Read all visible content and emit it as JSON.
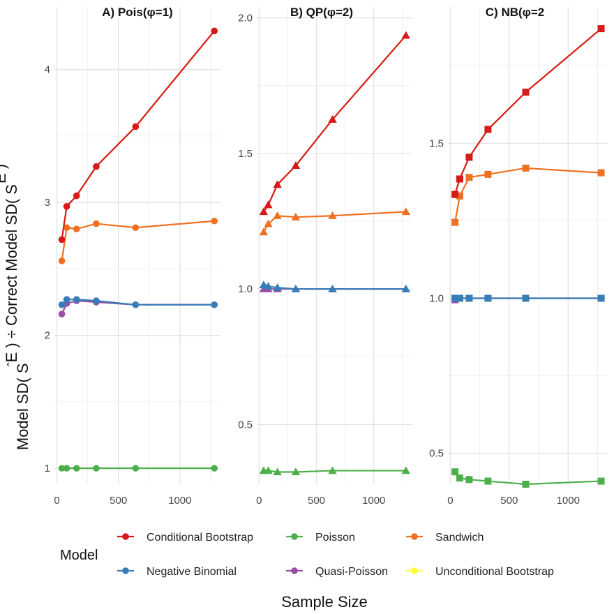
{
  "figure": {
    "ylabel": "Model SD( SÊ ) ÷ Correct Model SD( SÊ )",
    "ylabel_parts": [
      "Model SD( ",
      "S",
      "E",
      " ) ÷ Correct Model SD( ",
      "S",
      "E",
      " )"
    ],
    "xlabel": "Sample Size",
    "legend_title": "Model",
    "legend_items": [
      {
        "label": "Conditional Bootstrap",
        "color": "#d7191c"
      },
      {
        "label": "Poisson",
        "color": "#4daf4a"
      },
      {
        "label": "Sandwich",
        "color": "#f07021"
      },
      {
        "label": "Negative Binomial",
        "color": "#377eb8"
      },
      {
        "label": "Quasi-Poisson",
        "color": "#984ea3"
      },
      {
        "label": "Unconditional Bootstrap",
        "color": "#ffff33"
      }
    ]
  },
  "chart_data": [
    {
      "type": "line",
      "title": "A) Pois(φ=1)",
      "marker": "circle",
      "x": [
        40,
        80,
        160,
        320,
        640,
        1280
      ],
      "xlim": [
        -20,
        1330
      ],
      "ylim": [
        0.88,
        4.47
      ],
      "yticks": [
        1,
        2,
        3,
        4
      ],
      "xticks": [
        0,
        500,
        1000
      ],
      "series": [
        {
          "name": "Sandwich",
          "values": [
            2.56,
            2.81,
            2.8,
            2.84,
            2.81,
            2.86
          ]
        },
        {
          "name": "Poisson",
          "values": [
            1.0,
            1.0,
            1.0,
            1.0,
            1.0,
            1.0
          ]
        },
        {
          "name": "Quasi-Poisson",
          "values": [
            2.16,
            2.24,
            2.26,
            2.25,
            2.23,
            2.23
          ]
        },
        {
          "name": "Negative Binomial",
          "values": [
            2.23,
            2.27,
            2.27,
            2.26,
            2.23,
            2.23
          ]
        },
        {
          "name": "Unconditional Bootstrap",
          "values": [
            2.72,
            2.97,
            3.05,
            3.27,
            3.57,
            4.29
          ]
        },
        {
          "name": "Conditional Bootstrap",
          "values": [
            2.72,
            2.97,
            3.05,
            3.27,
            3.57,
            4.29
          ]
        }
      ]
    },
    {
      "type": "line",
      "title": "B) QP(φ=2)",
      "marker": "triangle",
      "x": [
        40,
        80,
        160,
        320,
        640,
        1280
      ],
      "xlim": [
        -20,
        1330
      ],
      "ylim": [
        0.28,
        2.04
      ],
      "yticks": [
        0.5,
        1.0,
        1.5,
        2.0
      ],
      "xticks": [
        0,
        500,
        1000
      ],
      "series": [
        {
          "name": "Sandwich",
          "values": [
            1.21,
            1.24,
            1.27,
            1.265,
            1.27,
            1.285
          ]
        },
        {
          "name": "Poisson",
          "values": [
            0.33,
            0.33,
            0.325,
            0.325,
            0.33,
            0.33
          ]
        },
        {
          "name": "Quasi-Poisson",
          "values": [
            1.0,
            1.0,
            1.0,
            1.0,
            1.0,
            1.0
          ]
        },
        {
          "name": "Negative Binomial",
          "values": [
            1.015,
            1.01,
            1.005,
            1.0,
            1.0,
            1.0
          ]
        },
        {
          "name": "Unconditional Bootstrap",
          "values": [
            1.285,
            1.31,
            1.385,
            1.455,
            1.625,
            1.935
          ]
        },
        {
          "name": "Conditional Bootstrap",
          "values": [
            1.285,
            1.31,
            1.385,
            1.455,
            1.625,
            1.935
          ]
        }
      ]
    },
    {
      "type": "line",
      "title": "C) NB(φ=2",
      "marker": "square",
      "x": [
        40,
        80,
        160,
        320,
        640,
        1280
      ],
      "xlim": [
        -20,
        1330
      ],
      "ylim": [
        0.4,
        1.94
      ],
      "yticks": [
        0.5,
        1.0,
        1.5
      ],
      "xticks": [
        0,
        500,
        1000
      ],
      "series": [
        {
          "name": "Sandwich",
          "values": [
            1.245,
            1.33,
            1.39,
            1.4,
            1.42,
            1.405
          ]
        },
        {
          "name": "Poisson",
          "values": [
            0.44,
            0.42,
            0.415,
            0.41,
            0.4,
            0.41
          ]
        },
        {
          "name": "Quasi-Poisson",
          "values": [
            0.995,
            1.0,
            1.0,
            1.0,
            1.0,
            1.0
          ]
        },
        {
          "name": "Negative Binomial",
          "values": [
            1.0,
            1.0,
            1.0,
            1.0,
            1.0,
            1.0
          ]
        },
        {
          "name": "Unconditional Bootstrap",
          "values": [
            1.335,
            1.385,
            1.455,
            1.545,
            1.665,
            1.87
          ]
        },
        {
          "name": "Conditional Bootstrap",
          "values": [
            1.335,
            1.385,
            1.455,
            1.545,
            1.665,
            1.87
          ]
        }
      ]
    }
  ]
}
